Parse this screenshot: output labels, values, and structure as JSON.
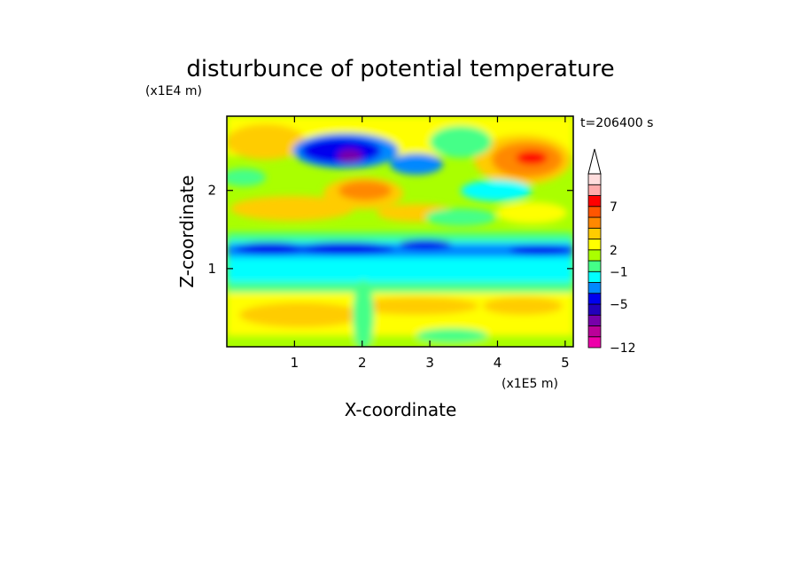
{
  "chart_data": {
    "type": "heatmap",
    "title": "disturbunce of potential temperature",
    "xlabel": "X-coordinate",
    "ylabel": "Z-coordinate",
    "x_unit": "(x1E5 m)",
    "y_unit": "(x1E4 m)",
    "time_label": "t=206400 s",
    "xlim": [
      0,
      5.12
    ],
    "ylim": [
      0,
      2.95
    ],
    "x_ticks": [
      1,
      2,
      3,
      4,
      5
    ],
    "y_ticks": [
      1,
      2
    ],
    "x_tick_labels": [
      "1",
      "2",
      "3",
      "4",
      "5"
    ],
    "y_tick_labels": [
      "1",
      "2"
    ],
    "colorbar": {
      "labels": [
        "7",
        "2",
        "−1",
        "−5",
        "−12"
      ],
      "label_values": [
        7,
        2,
        -1,
        -5,
        -12
      ],
      "colors": [
        "#ee00aa",
        "#bb0099",
        "#7700aa",
        "#2200bb",
        "#0000ee",
        "#0088ff",
        "#00ffff",
        "#44ff88",
        "#aaff00",
        "#ffff00",
        "#ffcc00",
        "#ff8800",
        "#ff5500",
        "#ff0000",
        "#ffaaaa",
        "#ffdddd"
      ],
      "extend_max": true
    }
  }
}
